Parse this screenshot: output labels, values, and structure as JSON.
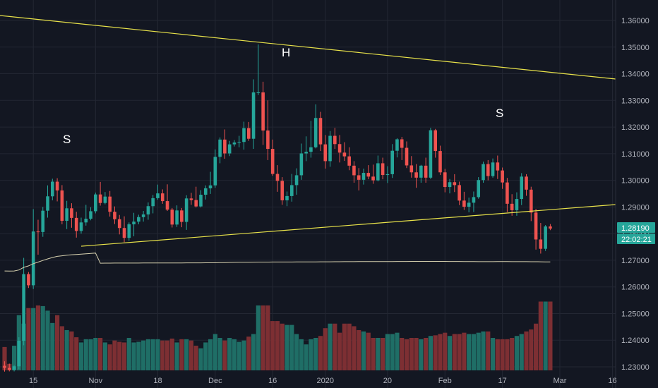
{
  "colors": {
    "background": "#131722",
    "grid": "#232733",
    "up": "#26a69a",
    "down": "#ef5350",
    "vol_up": "#1f6e66",
    "vol_down": "#7d2f33",
    "trendline": "#e8e24a",
    "moving_average": "#d8d2b0",
    "price_badge": "#26a69a",
    "axis_text": "#b2b5be"
  },
  "chart_data": {
    "type": "candlestick",
    "series_name": "",
    "y_axis": {
      "ticks": [
        "1.36000",
        "1.35000",
        "1.34000",
        "1.33000",
        "1.32000",
        "1.31000",
        "1.30000",
        "1.29000",
        "1.28000",
        "1.27000",
        "1.26000",
        "1.25000",
        "1.24000",
        "1.23000"
      ],
      "tick_values": [
        1.36,
        1.35,
        1.34,
        1.33,
        1.32,
        1.31,
        1.3,
        1.29,
        1.28,
        1.27,
        1.26,
        1.25,
        1.24,
        1.23
      ],
      "range": [
        1.2282,
        1.3638
      ],
      "position": "right"
    },
    "x_axis": {
      "ticks": [
        "15",
        "Nov",
        "18",
        "Dec",
        "16",
        "2020",
        "20",
        "Feb",
        "17",
        "Mar",
        "16"
      ],
      "tick_index": [
        6,
        19,
        32,
        44,
        56,
        67,
        80,
        92,
        104,
        116,
        127
      ],
      "bar_count": 130
    },
    "current_price": "1.28190",
    "countdown": "22:02:21",
    "annotations": [
      "S",
      "H",
      "S"
    ],
    "grid": true,
    "candles_ohlc": [
      [
        1.2304,
        1.2321,
        1.2282,
        1.2296
      ],
      [
        1.2296,
        1.2312,
        1.2283,
        1.2289
      ],
      [
        1.2289,
        1.2306,
        1.2283,
        1.2302
      ],
      [
        1.2302,
        1.2411,
        1.2291,
        1.2398
      ],
      [
        1.2398,
        1.2709,
        1.2381,
        1.2648
      ],
      [
        1.2648,
        1.2656,
        1.2596,
        1.2606
      ],
      [
        1.2606,
        1.2892,
        1.2592,
        1.2808
      ],
      [
        1.2808,
        1.2852,
        1.2721,
        1.2806
      ],
      [
        1.2806,
        1.29,
        1.2788,
        1.2886
      ],
      [
        1.2886,
        1.2981,
        1.286,
        1.294
      ],
      [
        1.294,
        1.3006,
        1.2925,
        1.2995
      ],
      [
        1.2995,
        1.3008,
        1.2921,
        1.2962
      ],
      [
        1.2962,
        1.2982,
        1.2835,
        1.2848
      ],
      [
        1.2848,
        1.2923,
        1.2817,
        1.2895
      ],
      [
        1.2895,
        1.2914,
        1.2822,
        1.2859
      ],
      [
        1.2859,
        1.2882,
        1.2785,
        1.281
      ],
      [
        1.281,
        1.286,
        1.28,
        1.2842
      ],
      [
        1.2842,
        1.2908,
        1.283,
        1.2856
      ],
      [
        1.2856,
        1.2899,
        1.285,
        1.2884
      ],
      [
        1.2884,
        1.2954,
        1.2876,
        1.2947
      ],
      [
        1.2947,
        1.2994,
        1.2905,
        1.2915
      ],
      [
        1.2915,
        1.2956,
        1.291,
        1.2939
      ],
      [
        1.2939,
        1.296,
        1.2864,
        1.2882
      ],
      [
        1.2882,
        1.2902,
        1.2836,
        1.2854
      ],
      [
        1.2854,
        1.287,
        1.2797,
        1.2821
      ],
      [
        1.2821,
        1.2865,
        1.2768,
        1.2784
      ],
      [
        1.2784,
        1.2842,
        1.2773,
        1.2835
      ],
      [
        1.2835,
        1.2878,
        1.279,
        1.2845
      ],
      [
        1.2845,
        1.2871,
        1.2835,
        1.2862
      ],
      [
        1.2862,
        1.2885,
        1.2845,
        1.2872
      ],
      [
        1.2872,
        1.2917,
        1.2852,
        1.2903
      ],
      [
        1.2903,
        1.2945,
        1.2876,
        1.2933
      ],
      [
        1.2933,
        1.2984,
        1.2927,
        1.2951
      ],
      [
        1.2951,
        1.2966,
        1.2912,
        1.2922
      ],
      [
        1.2922,
        1.2985,
        1.2885,
        1.289
      ],
      [
        1.289,
        1.2896,
        1.2823,
        1.2834
      ],
      [
        1.2834,
        1.2906,
        1.2825,
        1.2887
      ],
      [
        1.2887,
        1.2896,
        1.2824,
        1.2844
      ],
      [
        1.2844,
        1.2944,
        1.2814,
        1.2932
      ],
      [
        1.2932,
        1.2953,
        1.2908,
        1.2926
      ],
      [
        1.2926,
        1.2976,
        1.2898,
        1.2902
      ],
      [
        1.2902,
        1.2963,
        1.2898,
        1.2946
      ],
      [
        1.2946,
        1.2981,
        1.2928,
        1.297
      ],
      [
        1.297,
        1.3032,
        1.2949,
        1.2981
      ],
      [
        1.2981,
        1.3116,
        1.2972,
        1.3088
      ],
      [
        1.3088,
        1.3161,
        1.3064,
        1.3153
      ],
      [
        1.3153,
        1.3191,
        1.3081,
        1.3101
      ],
      [
        1.3101,
        1.3148,
        1.3091,
        1.3135
      ],
      [
        1.3135,
        1.3151,
        1.3127,
        1.3142
      ],
      [
        1.3142,
        1.3167,
        1.3124,
        1.3144
      ],
      [
        1.3144,
        1.322,
        1.3115,
        1.3196
      ],
      [
        1.3196,
        1.3219,
        1.3148,
        1.3156
      ],
      [
        1.3156,
        1.3379,
        1.3118,
        1.333
      ],
      [
        1.333,
        1.351,
        1.332,
        1.333
      ],
      [
        1.333,
        1.337,
        1.3133,
        1.3187
      ],
      [
        1.3187,
        1.33,
        1.3076,
        1.3118
      ],
      [
        1.3118,
        1.3153,
        1.3017,
        1.3024
      ],
      [
        1.3024,
        1.3057,
        1.2957,
        1.2998
      ],
      [
        1.2998,
        1.3012,
        1.2908,
        1.2925
      ],
      [
        1.2925,
        1.2958,
        1.2903,
        1.2941
      ],
      [
        1.2941,
        1.3024,
        1.292,
        1.2982
      ],
      [
        1.2982,
        1.3045,
        1.2946,
        1.3019
      ],
      [
        1.3019,
        1.3138,
        1.3002,
        1.3101
      ],
      [
        1.3101,
        1.3165,
        1.3072,
        1.3107
      ],
      [
        1.3107,
        1.3223,
        1.3085,
        1.3124
      ],
      [
        1.3124,
        1.3285,
        1.312,
        1.3234
      ],
      [
        1.3234,
        1.3257,
        1.311,
        1.3135
      ],
      [
        1.3135,
        1.317,
        1.3044,
        1.3072
      ],
      [
        1.3072,
        1.3185,
        1.3051,
        1.3167
      ],
      [
        1.3167,
        1.3197,
        1.3118,
        1.3136
      ],
      [
        1.3136,
        1.317,
        1.3067,
        1.3104
      ],
      [
        1.3104,
        1.3143,
        1.3073,
        1.309
      ],
      [
        1.309,
        1.3124,
        1.3038,
        1.3055
      ],
      [
        1.3055,
        1.3072,
        1.2991,
        1.3019
      ],
      [
        1.3019,
        1.3046,
        1.2962,
        1.3002
      ],
      [
        1.3002,
        1.3044,
        1.2984,
        1.3028
      ],
      [
        1.3028,
        1.3057,
        1.3004,
        1.3014
      ],
      [
        1.3014,
        1.3059,
        1.2987,
        1.3
      ],
      [
        1.3,
        1.3093,
        1.2996,
        1.3064
      ],
      [
        1.3064,
        1.3085,
        1.3004,
        1.302
      ],
      [
        1.302,
        1.3053,
        1.299,
        1.3023
      ],
      [
        1.3023,
        1.3136,
        1.3009,
        1.3111
      ],
      [
        1.3111,
        1.3158,
        1.3086,
        1.3154
      ],
      [
        1.3154,
        1.3163,
        1.3076,
        1.3122
      ],
      [
        1.3122,
        1.3146,
        1.3046,
        1.3056
      ],
      [
        1.3056,
        1.3091,
        1.301,
        1.303
      ],
      [
        1.303,
        1.3061,
        1.2972,
        1.301
      ],
      [
        1.301,
        1.3058,
        1.2991,
        1.3055
      ],
      [
        1.3055,
        1.3085,
        1.2991,
        1.301
      ],
      [
        1.301,
        1.3197,
        1.3005,
        1.3188
      ],
      [
        1.3188,
        1.3193,
        1.3085,
        1.311
      ],
      [
        1.311,
        1.313,
        1.302,
        1.303
      ],
      [
        1.303,
        1.3043,
        1.2955,
        1.2975
      ],
      [
        1.2975,
        1.3005,
        1.2951,
        1.2993
      ],
      [
        1.2993,
        1.3023,
        1.2956,
        1.2982
      ],
      [
        1.2982,
        1.2995,
        1.2907,
        1.2924
      ],
      [
        1.2924,
        1.2957,
        1.2889,
        1.2901
      ],
      [
        1.2901,
        1.2935,
        1.288,
        1.2916
      ],
      [
        1.2916,
        1.2958,
        1.2881,
        1.2937
      ],
      [
        1.2937,
        1.3012,
        1.2931,
        1.3001
      ],
      [
        1.3001,
        1.307,
        1.2991,
        1.3061
      ],
      [
        1.3061,
        1.3076,
        1.3,
        1.3016
      ],
      [
        1.3016,
        1.3082,
        1.301,
        1.3067
      ],
      [
        1.3067,
        1.3093,
        1.3005,
        1.3037
      ],
      [
        1.3037,
        1.3048,
        1.2968,
        1.2992
      ],
      [
        1.2992,
        1.3009,
        1.2881,
        1.2912
      ],
      [
        1.2912,
        1.2948,
        1.2867,
        1.2888
      ],
      [
        1.2888,
        1.2955,
        1.2867,
        1.293
      ],
      [
        1.293,
        1.3027,
        1.2907,
        1.3014
      ],
      [
        1.3014,
        1.3023,
        1.2942,
        1.2965
      ],
      [
        1.2965,
        1.2976,
        1.2847,
        1.2879
      ],
      [
        1.2879,
        1.2893,
        1.274,
        1.2778
      ],
      [
        1.2778,
        1.284,
        1.2725,
        1.2743
      ],
      [
        1.2743,
        1.2832,
        1.2735,
        1.2827
      ],
      [
        1.2827,
        1.2836,
        1.2813,
        1.2819
      ]
    ],
    "volume": [
      0.36,
      0.1,
      0.38,
      0.85,
      0.72,
      0.96,
      0.96,
      1.0,
      0.99,
      0.92,
      0.73,
      0.85,
      0.68,
      0.62,
      0.6,
      0.51,
      0.43,
      0.48,
      0.48,
      0.5,
      0.5,
      0.43,
      0.4,
      0.46,
      0.44,
      0.43,
      0.5,
      0.43,
      0.44,
      0.46,
      0.48,
      0.48,
      0.48,
      0.46,
      0.46,
      0.49,
      0.43,
      0.48,
      0.48,
      0.46,
      0.38,
      0.34,
      0.43,
      0.48,
      0.56,
      0.5,
      0.46,
      0.5,
      0.48,
      0.44,
      0.46,
      0.52,
      0.56,
      1.0,
      1.0,
      1.0,
      0.76,
      0.76,
      0.72,
      0.7,
      0.7,
      0.56,
      0.48,
      0.4,
      0.48,
      0.5,
      0.53,
      0.65,
      0.72,
      0.72,
      0.58,
      0.72,
      0.72,
      0.68,
      0.62,
      0.6,
      0.58,
      0.5,
      0.5,
      0.5,
      0.56,
      0.56,
      0.58,
      0.5,
      0.48,
      0.5,
      0.5,
      0.48,
      0.5,
      0.53,
      0.54,
      0.56,
      0.58,
      0.53,
      0.56,
      0.56,
      0.58,
      0.56,
      0.56,
      0.58,
      0.6,
      0.6,
      0.5,
      0.48,
      0.48,
      0.48,
      0.5,
      0.53,
      0.56,
      0.6,
      0.63,
      0.72,
      1.06,
      1.06,
      1.06,
      1.06,
      1.06
    ]
  }
}
